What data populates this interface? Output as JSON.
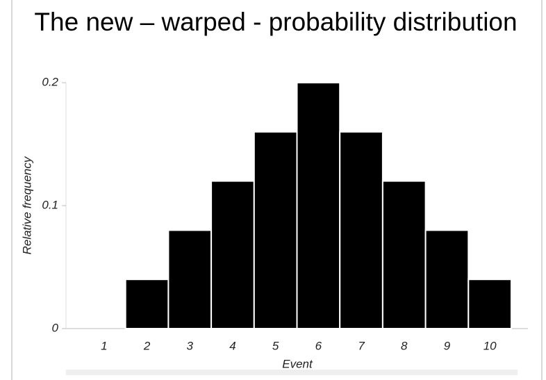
{
  "chart_data": {
    "type": "bar",
    "title": "The new – warped - probability distribution",
    "x_label": "Event",
    "y_label": "Relative frequency",
    "categories": [
      "1",
      "2",
      "3",
      "4",
      "5",
      "6",
      "7",
      "8",
      "9",
      "10"
    ],
    "values": [
      0,
      0.04,
      0.08,
      0.12,
      0.16,
      0.2,
      0.16,
      0.12,
      0.08,
      0.04
    ],
    "color": "#000000",
    "ylim": [
      0,
      0.2
    ],
    "yticks": [
      0,
      0.1,
      0.2
    ],
    "grid": false
  }
}
